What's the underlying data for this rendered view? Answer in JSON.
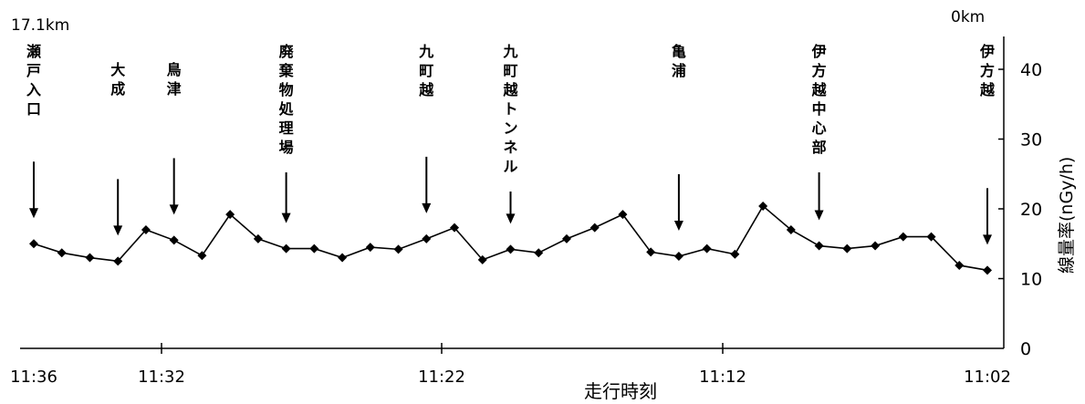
{
  "chart_data": {
    "type": "line",
    "title": "",
    "xlabel": "走行時刻",
    "ylabel": "線量率(nGy/h)",
    "ylim": [
      0,
      40
    ],
    "x_tick_labels": [
      "11:36",
      "11:32",
      "11:22",
      "11:12",
      "11:02"
    ],
    "y_tick_labels": [
      "0",
      "10",
      "20",
      "30",
      "40"
    ],
    "distance_start": "17.1km",
    "distance_end": "0km",
    "series": [
      {
        "values": [
          15.0,
          13.7,
          13.0,
          12.5,
          17.0,
          15.5,
          13.3,
          19.2,
          15.7,
          14.3,
          14.3,
          13.0,
          14.5,
          14.2,
          15.7,
          17.3,
          12.7,
          14.2,
          13.7,
          15.7,
          17.3,
          19.2,
          13.8,
          13.2,
          14.3,
          13.5,
          20.4,
          17.0,
          14.7,
          14.3,
          14.7,
          16.0,
          16.0,
          11.9,
          11.2
        ]
      }
    ],
    "landmarks": [
      {
        "label": "瀬戸入口",
        "at": 0
      },
      {
        "label": "大成",
        "at": 3
      },
      {
        "label": "鳥津",
        "at": 5
      },
      {
        "label": "廃棄物処理場",
        "at": 9
      },
      {
        "label": "九町越",
        "at": 14
      },
      {
        "label": "九町越トンネル",
        "at": 17
      },
      {
        "label": "亀浦",
        "at": 23
      },
      {
        "label": "伊方越中心部",
        "at": 28
      },
      {
        "label": "伊方越",
        "at": 34
      }
    ]
  }
}
